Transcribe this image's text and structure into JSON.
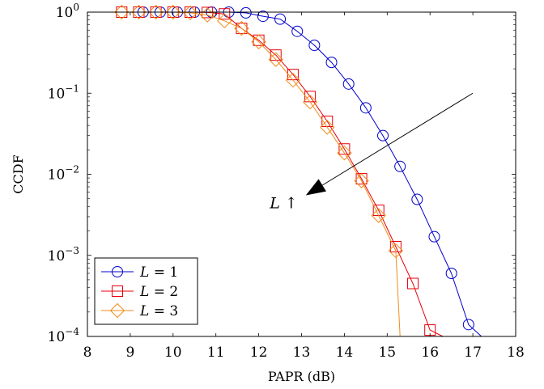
{
  "chart_data": {
    "type": "line",
    "title": "",
    "xlabel": "PAPR (dB)",
    "ylabel": "CCDF",
    "xlim": [
      8,
      18
    ],
    "ylim": [
      0.0001,
      1
    ],
    "yscale": "log",
    "x_ticks": [
      "8",
      "9",
      "10",
      "11",
      "12",
      "13",
      "14",
      "15",
      "16",
      "17",
      "18"
    ],
    "y_ticks": [
      {
        "base": "10",
        "exp": "0",
        "value": 1
      },
      {
        "base": "10",
        "exp": "−1",
        "value": 0.1
      },
      {
        "base": "10",
        "exp": "−2",
        "value": 0.01
      },
      {
        "base": "10",
        "exp": "−3",
        "value": 0.001
      },
      {
        "base": "10",
        "exp": "−4",
        "value": 0.0001
      }
    ],
    "grid": false,
    "legend_position": "bottom-left",
    "annotation": {
      "text": "L ↑",
      "from": [
        17.0,
        0.1
      ],
      "to": [
        13.1,
        0.0055
      ]
    },
    "series": [
      {
        "name": "L = 1",
        "marker": "circle",
        "color": "#0000cc",
        "x": [
          9.3,
          9.7,
          10.1,
          10.5,
          10.9,
          11.3,
          11.7,
          12.1,
          12.5,
          12.9,
          13.3,
          13.7,
          14.1,
          14.5,
          14.9,
          15.3,
          15.7,
          16.1,
          16.5,
          16.9,
          17.2
        ],
        "y": [
          1.0,
          1.0,
          1.0,
          1.0,
          1.0,
          1.0,
          0.98,
          0.89,
          0.82,
          0.58,
          0.39,
          0.24,
          0.13,
          0.066,
          0.03,
          0.0125,
          0.0049,
          0.0017,
          0.0006,
          0.00014,
          0.0001
        ]
      },
      {
        "name": "L = 2",
        "marker": "square",
        "color": "#e8000b",
        "x": [
          8.8,
          9.2,
          9.6,
          10.0,
          10.4,
          10.8,
          11.2,
          11.6,
          12.0,
          12.4,
          12.8,
          13.2,
          13.6,
          14.0,
          14.4,
          14.8,
          15.2,
          15.6,
          16.0,
          16.3
        ],
        "y": [
          1.0,
          1.0,
          1.0,
          1.0,
          1.0,
          0.99,
          0.95,
          0.63,
          0.45,
          0.295,
          0.17,
          0.091,
          0.045,
          0.0205,
          0.0088,
          0.0036,
          0.00128,
          0.00045,
          0.00012,
          0.0001
        ]
      },
      {
        "name": "L = 3",
        "marker": "diamond",
        "color": "#f28c18",
        "x": [
          8.8,
          9.2,
          9.6,
          10.0,
          10.4,
          10.8,
          11.2,
          11.6,
          12.0,
          12.4,
          12.8,
          13.2,
          13.6,
          14.0,
          14.4,
          14.8,
          15.2,
          15.3
        ],
        "y": [
          1.0,
          1.0,
          1.0,
          1.0,
          0.98,
          0.92,
          0.78,
          0.63,
          0.43,
          0.26,
          0.145,
          0.078,
          0.038,
          0.0183,
          0.0083,
          0.0031,
          0.00114,
          0.0001
        ]
      }
    ],
    "legend": [
      {
        "symbol": "L",
        "equals": "= 1"
      },
      {
        "symbol": "L",
        "equals": "= 2"
      },
      {
        "symbol": "L",
        "equals": "= 3"
      }
    ]
  }
}
